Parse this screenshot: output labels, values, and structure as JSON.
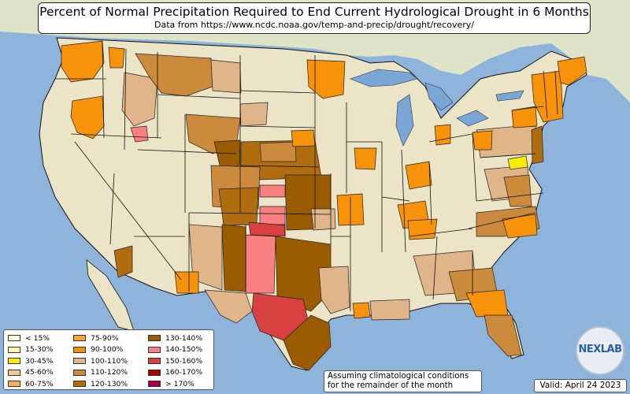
{
  "title": "Percent of Normal Precipitation Required to End Current Hydrological Drought in 6 Months",
  "subtitle": "Data from https://www.ncdc.noaa.gov/temp-and-precip/drought/recovery/",
  "note_line1": "Assuming climatological conditions",
  "note_line2": "for the remainder of the month",
  "valid": "Valid: April 24 2023",
  "logo_text": "NEXLAB",
  "colors": {
    "ocean": "#8fb4dc",
    "land": "#ece4c6",
    "border": "#111111",
    "canada": "#dfe3c8"
  },
  "legend": {
    "columns": [
      [
        {
          "label": "< 15%",
          "color": "#ffffe6"
        },
        {
          "label": "15-30%",
          "color": "#fff8a8"
        },
        {
          "label": "30-45%",
          "color": "#ffee00"
        },
        {
          "label": "45-60%",
          "color": "#f2c98f"
        },
        {
          "label": "60-75%",
          "color": "#f7b35c"
        }
      ],
      [
        {
          "label": "75-90%",
          "color": "#f9a13b"
        },
        {
          "label": "90-100%",
          "color": "#f6930b"
        },
        {
          "label": "100-110%",
          "color": "#e0b589"
        },
        {
          "label": "110-120%",
          "color": "#cc8a3c"
        },
        {
          "label": "120-130%",
          "color": "#b06d10"
        }
      ],
      [
        {
          "label": "130-140%",
          "color": "#9b5b00"
        },
        {
          "label": "140-150%",
          "color": "#f88080"
        },
        {
          "label": "150-160%",
          "color": "#d94040"
        },
        {
          "label": "160-170%",
          "color": "#a80000"
        },
        {
          "label": "> 170%",
          "color": "#a0004c"
        }
      ]
    ]
  }
}
